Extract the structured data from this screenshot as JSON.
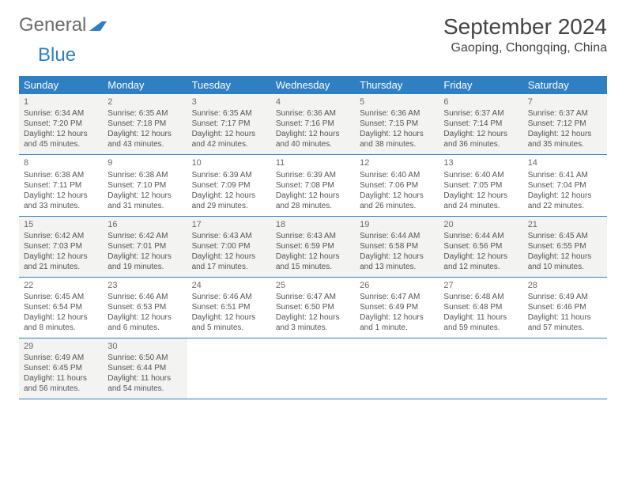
{
  "logo": {
    "general": "General",
    "blue": "Blue"
  },
  "header": {
    "month_title": "September 2024",
    "location": "Gaoping, Chongqing, China"
  },
  "colors": {
    "accent": "#2f7fc3",
    "shaded": "#f3f3f2",
    "text": "#555",
    "title": "#444"
  },
  "day_names": [
    "Sunday",
    "Monday",
    "Tuesday",
    "Wednesday",
    "Thursday",
    "Friday",
    "Saturday"
  ],
  "weeks": [
    {
      "shaded": true,
      "days": [
        {
          "n": "1",
          "sr": "Sunrise: 6:34 AM",
          "ss": "Sunset: 7:20 PM",
          "d1": "Daylight: 12 hours",
          "d2": "and 45 minutes."
        },
        {
          "n": "2",
          "sr": "Sunrise: 6:35 AM",
          "ss": "Sunset: 7:18 PM",
          "d1": "Daylight: 12 hours",
          "d2": "and 43 minutes."
        },
        {
          "n": "3",
          "sr": "Sunrise: 6:35 AM",
          "ss": "Sunset: 7:17 PM",
          "d1": "Daylight: 12 hours",
          "d2": "and 42 minutes."
        },
        {
          "n": "4",
          "sr": "Sunrise: 6:36 AM",
          "ss": "Sunset: 7:16 PM",
          "d1": "Daylight: 12 hours",
          "d2": "and 40 minutes."
        },
        {
          "n": "5",
          "sr": "Sunrise: 6:36 AM",
          "ss": "Sunset: 7:15 PM",
          "d1": "Daylight: 12 hours",
          "d2": "and 38 minutes."
        },
        {
          "n": "6",
          "sr": "Sunrise: 6:37 AM",
          "ss": "Sunset: 7:14 PM",
          "d1": "Daylight: 12 hours",
          "d2": "and 36 minutes."
        },
        {
          "n": "7",
          "sr": "Sunrise: 6:37 AM",
          "ss": "Sunset: 7:12 PM",
          "d1": "Daylight: 12 hours",
          "d2": "and 35 minutes."
        }
      ]
    },
    {
      "shaded": false,
      "days": [
        {
          "n": "8",
          "sr": "Sunrise: 6:38 AM",
          "ss": "Sunset: 7:11 PM",
          "d1": "Daylight: 12 hours",
          "d2": "and 33 minutes."
        },
        {
          "n": "9",
          "sr": "Sunrise: 6:38 AM",
          "ss": "Sunset: 7:10 PM",
          "d1": "Daylight: 12 hours",
          "d2": "and 31 minutes."
        },
        {
          "n": "10",
          "sr": "Sunrise: 6:39 AM",
          "ss": "Sunset: 7:09 PM",
          "d1": "Daylight: 12 hours",
          "d2": "and 29 minutes."
        },
        {
          "n": "11",
          "sr": "Sunrise: 6:39 AM",
          "ss": "Sunset: 7:08 PM",
          "d1": "Daylight: 12 hours",
          "d2": "and 28 minutes."
        },
        {
          "n": "12",
          "sr": "Sunrise: 6:40 AM",
          "ss": "Sunset: 7:06 PM",
          "d1": "Daylight: 12 hours",
          "d2": "and 26 minutes."
        },
        {
          "n": "13",
          "sr": "Sunrise: 6:40 AM",
          "ss": "Sunset: 7:05 PM",
          "d1": "Daylight: 12 hours",
          "d2": "and 24 minutes."
        },
        {
          "n": "14",
          "sr": "Sunrise: 6:41 AM",
          "ss": "Sunset: 7:04 PM",
          "d1": "Daylight: 12 hours",
          "d2": "and 22 minutes."
        }
      ]
    },
    {
      "shaded": true,
      "days": [
        {
          "n": "15",
          "sr": "Sunrise: 6:42 AM",
          "ss": "Sunset: 7:03 PM",
          "d1": "Daylight: 12 hours",
          "d2": "and 21 minutes."
        },
        {
          "n": "16",
          "sr": "Sunrise: 6:42 AM",
          "ss": "Sunset: 7:01 PM",
          "d1": "Daylight: 12 hours",
          "d2": "and 19 minutes."
        },
        {
          "n": "17",
          "sr": "Sunrise: 6:43 AM",
          "ss": "Sunset: 7:00 PM",
          "d1": "Daylight: 12 hours",
          "d2": "and 17 minutes."
        },
        {
          "n": "18",
          "sr": "Sunrise: 6:43 AM",
          "ss": "Sunset: 6:59 PM",
          "d1": "Daylight: 12 hours",
          "d2": "and 15 minutes."
        },
        {
          "n": "19",
          "sr": "Sunrise: 6:44 AM",
          "ss": "Sunset: 6:58 PM",
          "d1": "Daylight: 12 hours",
          "d2": "and 13 minutes."
        },
        {
          "n": "20",
          "sr": "Sunrise: 6:44 AM",
          "ss": "Sunset: 6:56 PM",
          "d1": "Daylight: 12 hours",
          "d2": "and 12 minutes."
        },
        {
          "n": "21",
          "sr": "Sunrise: 6:45 AM",
          "ss": "Sunset: 6:55 PM",
          "d1": "Daylight: 12 hours",
          "d2": "and 10 minutes."
        }
      ]
    },
    {
      "shaded": false,
      "days": [
        {
          "n": "22",
          "sr": "Sunrise: 6:45 AM",
          "ss": "Sunset: 6:54 PM",
          "d1": "Daylight: 12 hours",
          "d2": "and 8 minutes."
        },
        {
          "n": "23",
          "sr": "Sunrise: 6:46 AM",
          "ss": "Sunset: 6:53 PM",
          "d1": "Daylight: 12 hours",
          "d2": "and 6 minutes."
        },
        {
          "n": "24",
          "sr": "Sunrise: 6:46 AM",
          "ss": "Sunset: 6:51 PM",
          "d1": "Daylight: 12 hours",
          "d2": "and 5 minutes."
        },
        {
          "n": "25",
          "sr": "Sunrise: 6:47 AM",
          "ss": "Sunset: 6:50 PM",
          "d1": "Daylight: 12 hours",
          "d2": "and 3 minutes."
        },
        {
          "n": "26",
          "sr": "Sunrise: 6:47 AM",
          "ss": "Sunset: 6:49 PM",
          "d1": "Daylight: 12 hours",
          "d2": "and 1 minute."
        },
        {
          "n": "27",
          "sr": "Sunrise: 6:48 AM",
          "ss": "Sunset: 6:48 PM",
          "d1": "Daylight: 11 hours",
          "d2": "and 59 minutes."
        },
        {
          "n": "28",
          "sr": "Sunrise: 6:49 AM",
          "ss": "Sunset: 6:46 PM",
          "d1": "Daylight: 11 hours",
          "d2": "and 57 minutes."
        }
      ]
    },
    {
      "shaded": true,
      "days": [
        {
          "n": "29",
          "sr": "Sunrise: 6:49 AM",
          "ss": "Sunset: 6:45 PM",
          "d1": "Daylight: 11 hours",
          "d2": "and 56 minutes."
        },
        {
          "n": "30",
          "sr": "Sunrise: 6:50 AM",
          "ss": "Sunset: 6:44 PM",
          "d1": "Daylight: 11 hours",
          "d2": "and 54 minutes."
        },
        {
          "n": "",
          "sr": "",
          "ss": "",
          "d1": "",
          "d2": ""
        },
        {
          "n": "",
          "sr": "",
          "ss": "",
          "d1": "",
          "d2": ""
        },
        {
          "n": "",
          "sr": "",
          "ss": "",
          "d1": "",
          "d2": ""
        },
        {
          "n": "",
          "sr": "",
          "ss": "",
          "d1": "",
          "d2": ""
        },
        {
          "n": "",
          "sr": "",
          "ss": "",
          "d1": "",
          "d2": ""
        }
      ]
    }
  ]
}
